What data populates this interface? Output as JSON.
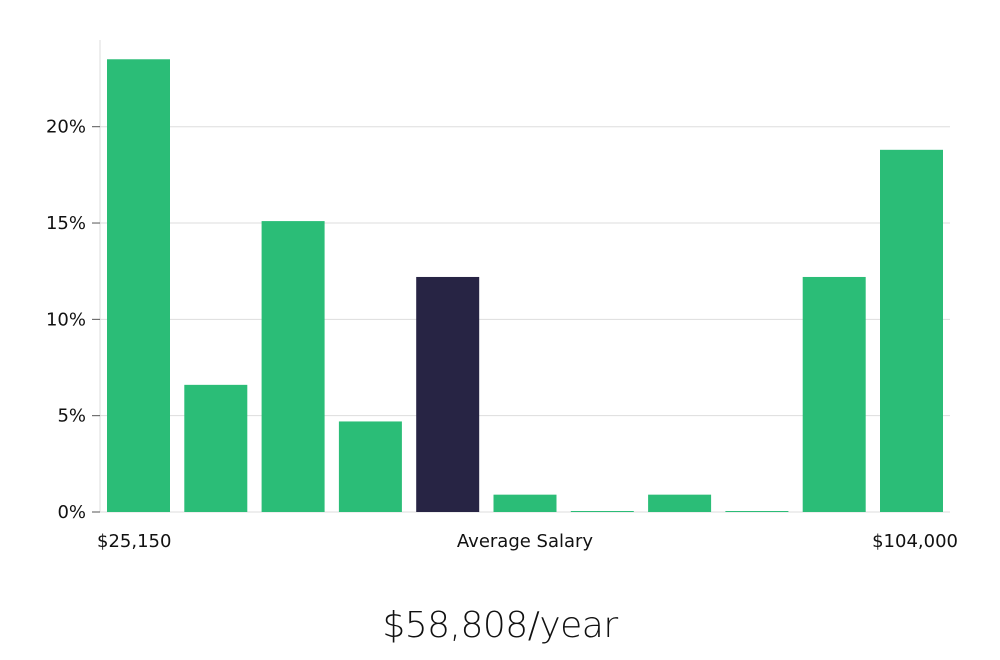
{
  "chart_data": {
    "type": "bar",
    "categories": [
      "1",
      "2",
      "3",
      "4",
      "5",
      "6",
      "7",
      "8",
      "9",
      "10",
      "11"
    ],
    "values": [
      23.5,
      6.6,
      15.1,
      4.7,
      12.2,
      0.9,
      0.05,
      0.9,
      0.05,
      12.2,
      18.8
    ],
    "highlight_index": 4,
    "ylim": [
      0,
      24.5
    ],
    "yticks": [
      "0%",
      "5%",
      "10%",
      "15%",
      "20%"
    ],
    "ytick_values": [
      0,
      5,
      10,
      15,
      20
    ],
    "x_left_label": "$25,150",
    "x_center_label": "Average Salary",
    "x_right_label": "$104,000",
    "grid": true,
    "colors": {
      "bar": "#2bbd77",
      "highlight": "#272444",
      "grid": "#dddddd",
      "axis": "#dddddd"
    }
  },
  "summary": {
    "salary_text": "$58,808/year"
  }
}
